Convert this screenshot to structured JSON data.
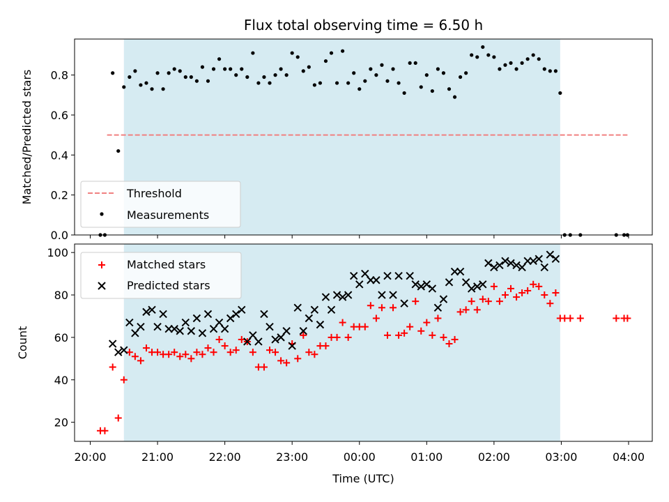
{
  "chart_data": [
    {
      "type": "scatter",
      "title": "Flux total observing time = 6.50 h",
      "xlabel": "",
      "ylabel": "Matched/Predicted stars",
      "ylim": [
        0,
        0.98
      ],
      "yticks": [
        "0.0",
        "0.2",
        "0.4",
        "0.6",
        "0.8"
      ],
      "shaded_span": {
        "start": "20:30",
        "end": "02:59",
        "color": "#add8e6"
      },
      "threshold": {
        "name": "Threshold",
        "value": 0.5,
        "x_start": "20:15",
        "x_end": "03:59",
        "color": "#f08080"
      },
      "legend": {
        "position": "lower left",
        "entries": [
          "Threshold",
          "Measurements"
        ]
      },
      "series": [
        {
          "name": "Measurements",
          "marker": "dot",
          "color": "#000000",
          "points": [
            [
              "20:09",
              0.0
            ],
            [
              "20:13",
              0.0
            ],
            [
              "20:20",
              0.81
            ],
            [
              "20:25",
              0.42
            ],
            [
              "20:30",
              0.74
            ],
            [
              "20:35",
              0.79
            ],
            [
              "20:40",
              0.82
            ],
            [
              "20:45",
              0.75
            ],
            [
              "20:50",
              0.76
            ],
            [
              "20:55",
              0.73
            ],
            [
              "21:00",
              0.81
            ],
            [
              "21:05",
              0.73
            ],
            [
              "21:10",
              0.81
            ],
            [
              "21:15",
              0.83
            ],
            [
              "21:20",
              0.82
            ],
            [
              "21:25",
              0.79
            ],
            [
              "21:30",
              0.79
            ],
            [
              "21:35",
              0.77
            ],
            [
              "21:40",
              0.84
            ],
            [
              "21:45",
              0.77
            ],
            [
              "21:50",
              0.83
            ],
            [
              "21:55",
              0.88
            ],
            [
              "22:00",
              0.83
            ],
            [
              "22:05",
              0.83
            ],
            [
              "22:10",
              0.8
            ],
            [
              "22:15",
              0.83
            ],
            [
              "22:20",
              0.79
            ],
            [
              "22:25",
              0.91
            ],
            [
              "22:30",
              0.76
            ],
            [
              "22:35",
              0.79
            ],
            [
              "22:40",
              0.76
            ],
            [
              "22:45",
              0.8
            ],
            [
              "22:50",
              0.83
            ],
            [
              "22:55",
              0.8
            ],
            [
              "23:00",
              0.91
            ],
            [
              "23:05",
              0.89
            ],
            [
              "23:10",
              0.82
            ],
            [
              "23:15",
              0.84
            ],
            [
              "23:20",
              0.75
            ],
            [
              "23:25",
              0.76
            ],
            [
              "23:30",
              0.87
            ],
            [
              "23:35",
              0.91
            ],
            [
              "23:40",
              0.76
            ],
            [
              "23:45",
              0.92
            ],
            [
              "23:50",
              0.76
            ],
            [
              "23:55",
              0.81
            ],
            [
              "00:00",
              0.73
            ],
            [
              "00:05",
              0.77
            ],
            [
              "00:10",
              0.83
            ],
            [
              "00:15",
              0.8
            ],
            [
              "00:20",
              0.85
            ],
            [
              "00:25",
              0.77
            ],
            [
              "00:30",
              0.83
            ],
            [
              "00:35",
              0.76
            ],
            [
              "00:40",
              0.71
            ],
            [
              "00:45",
              0.86
            ],
            [
              "00:50",
              0.86
            ],
            [
              "00:55",
              0.74
            ],
            [
              "01:00",
              0.8
            ],
            [
              "01:05",
              0.72
            ],
            [
              "01:10",
              0.83
            ],
            [
              "01:15",
              0.81
            ],
            [
              "01:20",
              0.73
            ],
            [
              "01:25",
              0.69
            ],
            [
              "01:30",
              0.79
            ],
            [
              "01:35",
              0.81
            ],
            [
              "01:40",
              0.9
            ],
            [
              "01:45",
              0.89
            ],
            [
              "01:50",
              0.94
            ],
            [
              "01:55",
              0.9
            ],
            [
              "02:00",
              0.89
            ],
            [
              "02:05",
              0.83
            ],
            [
              "02:10",
              0.85
            ],
            [
              "02:15",
              0.86
            ],
            [
              "02:20",
              0.83
            ],
            [
              "02:25",
              0.86
            ],
            [
              "02:30",
              0.88
            ],
            [
              "02:35",
              0.9
            ],
            [
              "02:40",
              0.88
            ],
            [
              "02:45",
              0.83
            ],
            [
              "02:50",
              0.82
            ],
            [
              "02:55",
              0.82
            ],
            [
              "02:59",
              0.71
            ],
            [
              "03:03",
              0.0
            ],
            [
              "03:08",
              0.0
            ],
            [
              "03:17",
              0.0
            ],
            [
              "03:49",
              0.0
            ],
            [
              "03:56",
              0.0
            ],
            [
              "03:59",
              0.0
            ]
          ]
        }
      ]
    },
    {
      "type": "scatter",
      "title": "",
      "xlabel": "Time (UTC)",
      "ylabel": "Count",
      "ylim": [
        11,
        104
      ],
      "yticks": [
        "20",
        "40",
        "60",
        "80",
        "100"
      ],
      "x_ticks": [
        "20:00",
        "21:00",
        "22:00",
        "23:00",
        "00:00",
        "01:00",
        "02:00",
        "03:00",
        "04:00"
      ],
      "shaded_span": {
        "start": "20:30",
        "end": "02:59",
        "color": "#add8e6"
      },
      "legend": {
        "position": "upper left",
        "entries": [
          "Matched stars",
          "Predicted stars"
        ]
      },
      "series": [
        {
          "name": "Matched stars",
          "marker": "plus",
          "color": "#ff0000",
          "points": [
            [
              "20:09",
              16
            ],
            [
              "20:13",
              16
            ],
            [
              "20:20",
              46
            ],
            [
              "20:25",
              22
            ],
            [
              "20:30",
              40
            ],
            [
              "20:35",
              53
            ],
            [
              "20:40",
              51
            ],
            [
              "20:45",
              49
            ],
            [
              "20:50",
              55
            ],
            [
              "20:55",
              53
            ],
            [
              "21:00",
              53
            ],
            [
              "21:05",
              52
            ],
            [
              "21:10",
              52
            ],
            [
              "21:15",
              53
            ],
            [
              "21:20",
              51
            ],
            [
              "21:25",
              52
            ],
            [
              "21:30",
              50
            ],
            [
              "21:35",
              53
            ],
            [
              "21:40",
              52
            ],
            [
              "21:45",
              55
            ],
            [
              "21:50",
              53
            ],
            [
              "21:55",
              59
            ],
            [
              "22:00",
              56
            ],
            [
              "22:05",
              53
            ],
            [
              "22:10",
              54
            ],
            [
              "22:15",
              59
            ],
            [
              "22:20",
              58
            ],
            [
              "22:25",
              53
            ],
            [
              "22:30",
              46
            ],
            [
              "22:35",
              46
            ],
            [
              "22:40",
              54
            ],
            [
              "22:45",
              53
            ],
            [
              "22:50",
              49
            ],
            [
              "22:55",
              48
            ],
            [
              "23:00",
              57
            ],
            [
              "23:05",
              50
            ],
            [
              "23:10",
              61
            ],
            [
              "23:15",
              53
            ],
            [
              "23:20",
              52
            ],
            [
              "23:25",
              56
            ],
            [
              "23:30",
              56
            ],
            [
              "23:35",
              60
            ],
            [
              "23:40",
              60
            ],
            [
              "23:45",
              67
            ],
            [
              "23:50",
              60
            ],
            [
              "23:55",
              65
            ],
            [
              "00:00",
              65
            ],
            [
              "00:05",
              65
            ],
            [
              "00:10",
              75
            ],
            [
              "00:15",
              69
            ],
            [
              "00:20",
              74
            ],
            [
              "00:25",
              61
            ],
            [
              "00:30",
              74
            ],
            [
              "00:35",
              61
            ],
            [
              "00:40",
              62
            ],
            [
              "00:45",
              65
            ],
            [
              "00:50",
              77
            ],
            [
              "00:55",
              63
            ],
            [
              "01:00",
              67
            ],
            [
              "01:05",
              61
            ],
            [
              "01:10",
              69
            ],
            [
              "01:15",
              60
            ],
            [
              "01:20",
              57
            ],
            [
              "01:25",
              59
            ],
            [
              "01:30",
              72
            ],
            [
              "01:35",
              73
            ],
            [
              "01:40",
              77
            ],
            [
              "01:45",
              73
            ],
            [
              "01:50",
              78
            ],
            [
              "01:55",
              77
            ],
            [
              "02:00",
              84
            ],
            [
              "02:05",
              77
            ],
            [
              "02:10",
              80
            ],
            [
              "02:15",
              83
            ],
            [
              "02:20",
              79
            ],
            [
              "02:25",
              81
            ],
            [
              "02:30",
              82
            ],
            [
              "02:35",
              85
            ],
            [
              "02:40",
              84
            ],
            [
              "02:45",
              80
            ],
            [
              "02:50",
              76
            ],
            [
              "02:55",
              81
            ],
            [
              "02:59",
              69
            ],
            [
              "03:03",
              69
            ],
            [
              "03:08",
              69
            ],
            [
              "03:17",
              69
            ],
            [
              "03:49",
              69
            ],
            [
              "03:56",
              69
            ],
            [
              "03:59",
              69
            ]
          ]
        },
        {
          "name": "Predicted stars",
          "marker": "x",
          "color": "#000000",
          "points": [
            [
              "20:20",
              57
            ],
            [
              "20:25",
              53
            ],
            [
              "20:30",
              54
            ],
            [
              "20:35",
              67
            ],
            [
              "20:40",
              62
            ],
            [
              "20:45",
              65
            ],
            [
              "20:50",
              72
            ],
            [
              "20:55",
              73
            ],
            [
              "21:00",
              65
            ],
            [
              "21:05",
              71
            ],
            [
              "21:10",
              64
            ],
            [
              "21:15",
              64
            ],
            [
              "21:20",
              63
            ],
            [
              "21:25",
              67
            ],
            [
              "21:30",
              63
            ],
            [
              "21:35",
              69
            ],
            [
              "21:40",
              62
            ],
            [
              "21:45",
              71
            ],
            [
              "21:50",
              64
            ],
            [
              "21:55",
              67
            ],
            [
              "22:00",
              64
            ],
            [
              "22:05",
              69
            ],
            [
              "22:10",
              71
            ],
            [
              "22:15",
              73
            ],
            [
              "22:20",
              58
            ],
            [
              "22:25",
              61
            ],
            [
              "22:30",
              58
            ],
            [
              "22:35",
              71
            ],
            [
              "22:40",
              65
            ],
            [
              "22:45",
              59
            ],
            [
              "22:50",
              60
            ],
            [
              "22:55",
              63
            ],
            [
              "23:00",
              56
            ],
            [
              "23:05",
              74
            ],
            [
              "23:10",
              63
            ],
            [
              "23:15",
              69
            ],
            [
              "23:20",
              73
            ],
            [
              "23:25",
              66
            ],
            [
              "23:30",
              79
            ],
            [
              "23:35",
              73
            ],
            [
              "23:40",
              80
            ],
            [
              "23:45",
              79
            ],
            [
              "23:50",
              80
            ],
            [
              "23:55",
              89
            ],
            [
              "00:00",
              85
            ],
            [
              "00:05",
              90
            ],
            [
              "00:10",
              87
            ],
            [
              "00:15",
              87
            ],
            [
              "00:20",
              80
            ],
            [
              "00:25",
              89
            ],
            [
              "00:30",
              80
            ],
            [
              "00:35",
              89
            ],
            [
              "00:40",
              76
            ],
            [
              "00:45",
              89
            ],
            [
              "00:50",
              85
            ],
            [
              "00:55",
              84
            ],
            [
              "01:00",
              85
            ],
            [
              "01:05",
              83
            ],
            [
              "01:10",
              74
            ],
            [
              "01:15",
              78
            ],
            [
              "01:20",
              86
            ],
            [
              "01:25",
              91
            ],
            [
              "01:30",
              91
            ],
            [
              "01:35",
              86
            ],
            [
              "01:40",
              83
            ],
            [
              "01:45",
              84
            ],
            [
              "01:50",
              85
            ],
            [
              "01:55",
              95
            ],
            [
              "02:00",
              93
            ],
            [
              "02:05",
              94
            ],
            [
              "02:10",
              96
            ],
            [
              "02:15",
              95
            ],
            [
              "02:20",
              94
            ],
            [
              "02:25",
              93
            ],
            [
              "02:30",
              96
            ],
            [
              "02:35",
              96
            ],
            [
              "02:40",
              97
            ],
            [
              "02:45",
              93
            ],
            [
              "02:50",
              99
            ],
            [
              "02:55",
              97
            ]
          ]
        }
      ]
    }
  ]
}
